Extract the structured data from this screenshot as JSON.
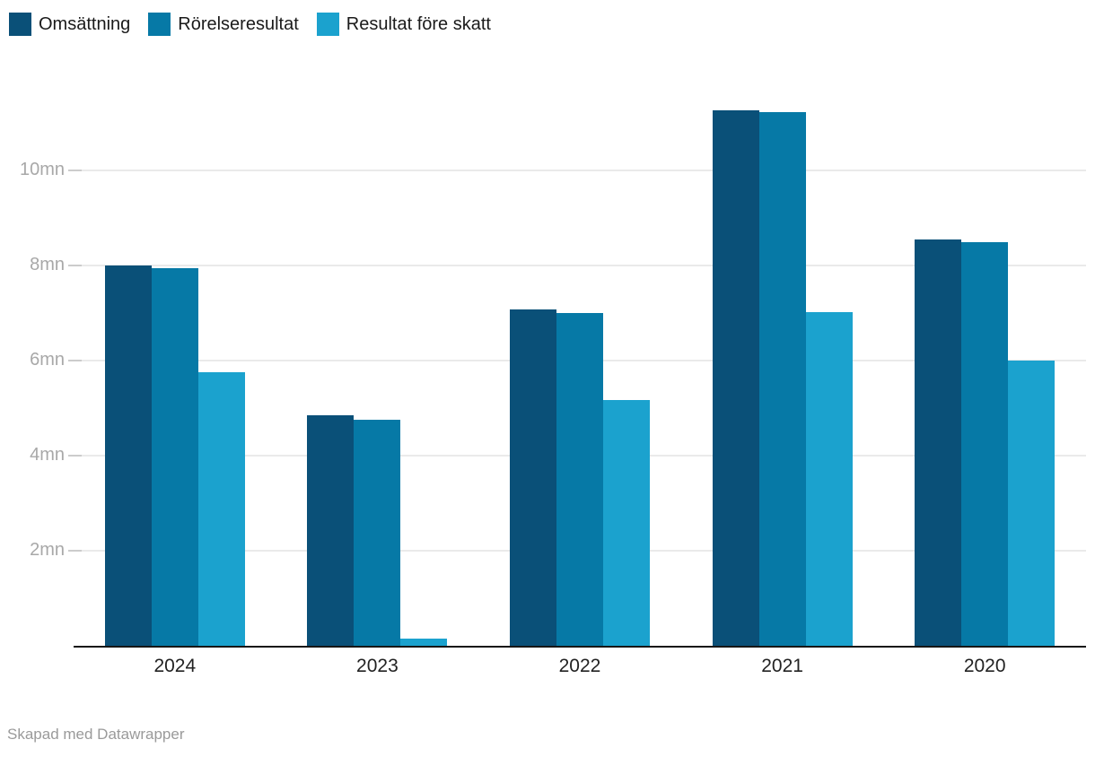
{
  "chart_data": {
    "type": "bar",
    "title": "",
    "categories": [
      "2024",
      "2023",
      "2022",
      "2021",
      "2020"
    ],
    "series": [
      {
        "name": "Omsättning",
        "color": "#0a5078",
        "values": [
          8.0,
          4.85,
          7.08,
          11.27,
          8.55
        ]
      },
      {
        "name": "Rörelseresultat",
        "color": "#0679a6",
        "values": [
          7.95,
          4.76,
          7.0,
          11.23,
          8.5
        ]
      },
      {
        "name": "Resultat före skatt",
        "color": "#1ba2ce",
        "values": [
          5.75,
          0.15,
          5.18,
          7.02,
          6.0
        ]
      }
    ],
    "xlabel": "",
    "ylabel": "",
    "unit": "mn",
    "y_ticks": [
      {
        "value": 2,
        "label": "2mn"
      },
      {
        "value": 4,
        "label": "4mn"
      },
      {
        "value": 6,
        "label": "6mn"
      },
      {
        "value": 8,
        "label": "8mn"
      },
      {
        "value": 10,
        "label": "10mn"
      }
    ],
    "ylim": [
      0,
      11.89
    ],
    "grid": "horizontal",
    "legend_position": "top"
  },
  "footer": {
    "attribution": "Skapad med Datawrapper"
  },
  "colors": {
    "background": "#ffffff",
    "axis": "#161616",
    "gridline": "#eaeaea",
    "tick": "#cccccc",
    "y_label_text": "#a8a8a8",
    "x_label_text": "#222222",
    "legend_text": "#1a1a1a",
    "attribution_text": "#9a9a9a"
  }
}
